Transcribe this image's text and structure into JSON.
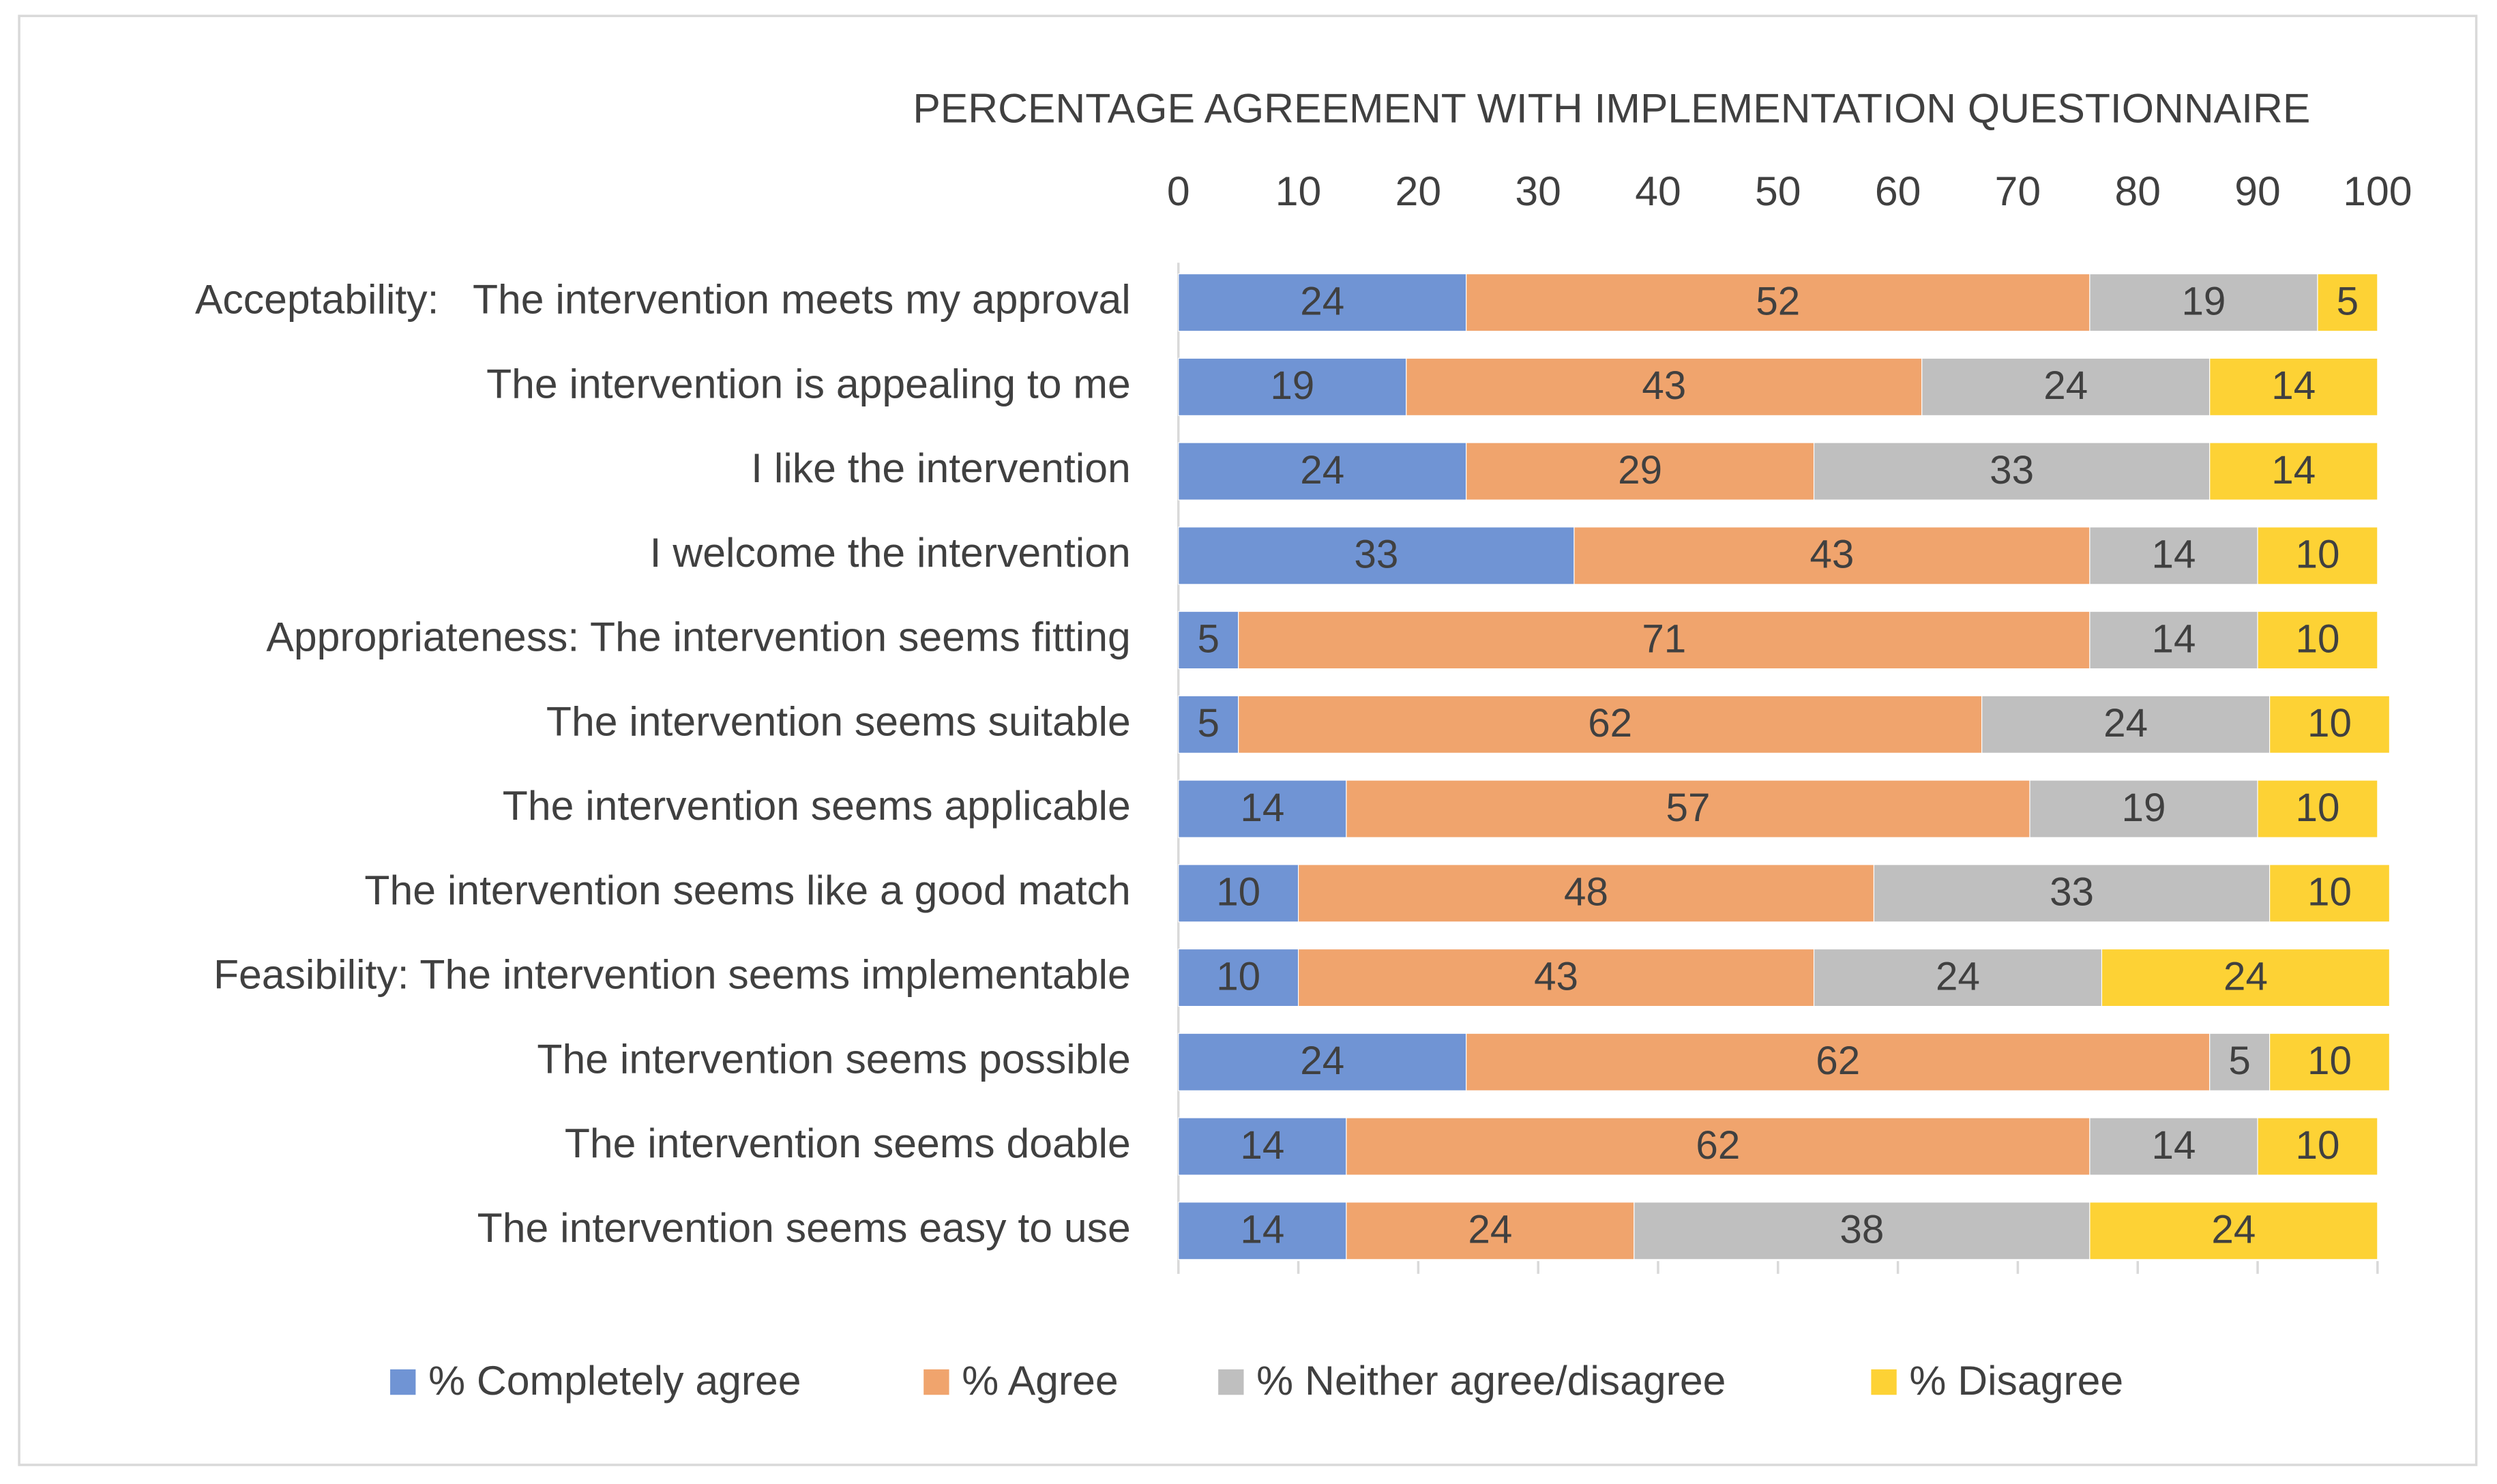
{
  "chart_data": {
    "type": "bar",
    "orientation": "horizontal",
    "stacked": true,
    "title": "PERCENTAGE AGREEMENT WITH IMPLEMENTATION QUESTIONNAIRE",
    "categories": [
      "Acceptability:   The intervention meets my approval",
      "The intervention is appealing to me",
      "I like the intervention",
      "I welcome the intervention",
      "Appropriateness: The intervention seems fitting",
      "The intervention seems suitable",
      "The intervention seems applicable",
      "The intervention seems like a good match",
      "Feasibility: The intervention seems implementable",
      "The intervention seems possible",
      "The intervention seems doable",
      "The intervention seems easy to use"
    ],
    "series": [
      {
        "name": "% Completely agree",
        "color": "#7094d4",
        "values": [
          24,
          19,
          24,
          33,
          5,
          5,
          14,
          10,
          10,
          24,
          14,
          14
        ]
      },
      {
        "name": "% Agree",
        "color": "#f0a46d",
        "values": [
          52,
          43,
          29,
          43,
          71,
          62,
          57,
          48,
          43,
          62,
          62,
          24
        ]
      },
      {
        "name": "% Neither agree/disagree",
        "color": "#bfbfbf",
        "values": [
          19,
          24,
          33,
          14,
          14,
          24,
          19,
          33,
          24,
          5,
          14,
          38
        ]
      },
      {
        "name": "% Disagree",
        "color": "#fdd235",
        "values": [
          5,
          14,
          14,
          10,
          10,
          10,
          10,
          10,
          24,
          10,
          10,
          24
        ]
      }
    ],
    "xlim": [
      0,
      100
    ],
    "xticks": [
      0,
      10,
      20,
      30,
      40,
      50,
      60,
      70,
      80,
      90,
      100
    ],
    "legend": "bottom"
  }
}
